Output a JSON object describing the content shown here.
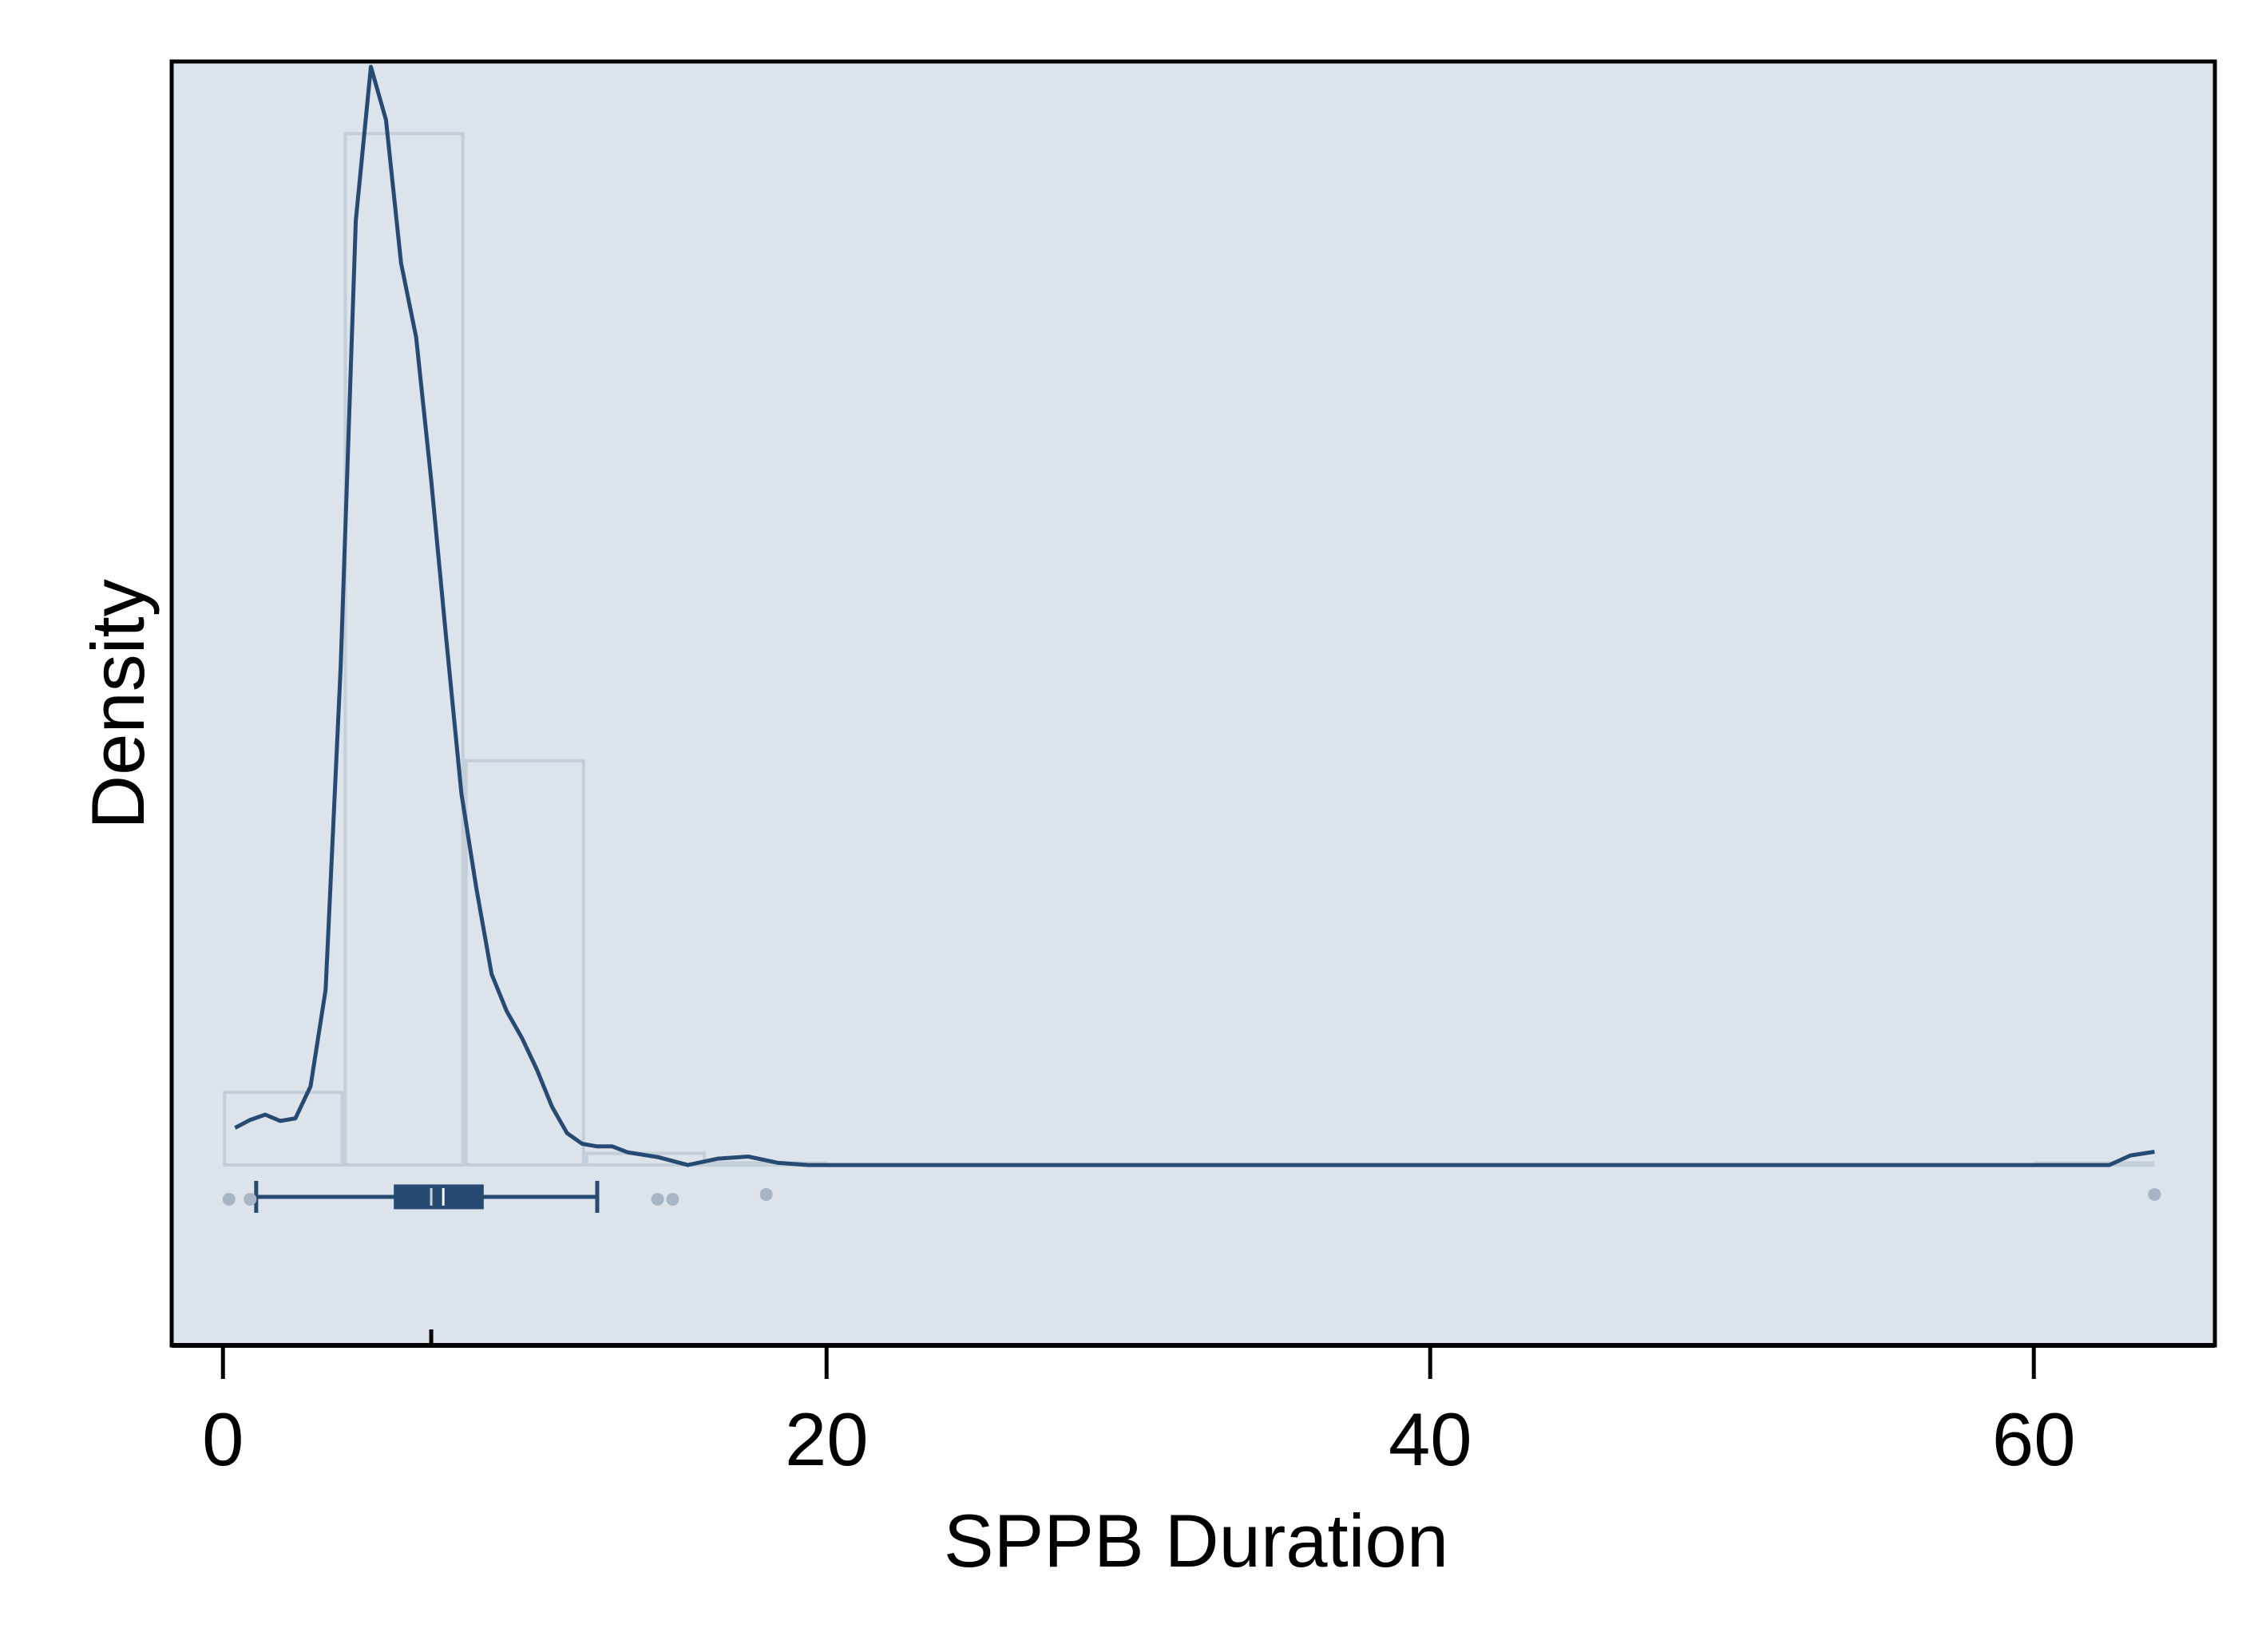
{
  "chart_data": {
    "type": "histogram",
    "title": "",
    "xlabel": "SPPB Duration",
    "ylabel": "Density",
    "xlim": [
      -1.7,
      66.0
    ],
    "ylim": [
      -0.034,
      0.208
    ],
    "x_ticks": [
      0,
      20,
      40,
      60
    ],
    "y_ticks": [],
    "grid": false,
    "legend": "none",
    "colors": {
      "plot_background": "#dde3ea",
      "bar_fill": "#dde3ea",
      "bar_edge": "#c2ced9",
      "density_line": "#274a72",
      "boxplot": "#274a72",
      "outlier": "#a7b5c4",
      "axis": "#000000"
    },
    "histogram": {
      "bin_edges": [
        0,
        4,
        8,
        12,
        16,
        20,
        24,
        28,
        32,
        36,
        40,
        44,
        48,
        52,
        56,
        60,
        64
      ],
      "density": [
        0.0137,
        0.1944,
        0.0762,
        0.0022,
        0.0004,
        0,
        0,
        0,
        0,
        0,
        0,
        0,
        0,
        0,
        0,
        0.0004
      ]
    },
    "density_curve": {
      "x": [
        0.4,
        0.9,
        1.4,
        1.9,
        2.4,
        2.9,
        3.4,
        3.9,
        4.4,
        4.9,
        5.4,
        5.9,
        6.4,
        6.9,
        7.4,
        7.9,
        8.4,
        8.9,
        9.4,
        9.9,
        10.4,
        10.9,
        11.4,
        11.9,
        12.4,
        12.9,
        13.4,
        14.4,
        15.4,
        16.4,
        17.4,
        18.4,
        19.4,
        20.5,
        25,
        30,
        35,
        40,
        45,
        50,
        55,
        60,
        62.5,
        63.2,
        64.0
      ],
      "y": [
        0.007,
        0.0085,
        0.0095,
        0.0083,
        0.0088,
        0.0148,
        0.033,
        0.094,
        0.178,
        0.207,
        0.197,
        0.17,
        0.156,
        0.129,
        0.099,
        0.07,
        0.052,
        0.036,
        0.029,
        0.024,
        0.018,
        0.011,
        0.006,
        0.004,
        0.0035,
        0.0035,
        0.0024,
        0.0015,
        0.0,
        0.0012,
        0.0016,
        0.0004,
        0.0,
        0.0,
        0.0,
        0.0,
        0.0,
        0.0,
        0.0,
        0.0,
        0.0,
        0.0,
        0.0,
        0.0018,
        0.0025
      ]
    },
    "boxplot": {
      "whisker_low": 1.1,
      "q1": 5.7,
      "median": 7.3,
      "mean": 6.9,
      "q3": 8.6,
      "whisker_high": 12.4,
      "outliers": [
        0.2,
        0.9,
        14.4,
        14.9,
        18.0,
        64.0
      ]
    }
  }
}
